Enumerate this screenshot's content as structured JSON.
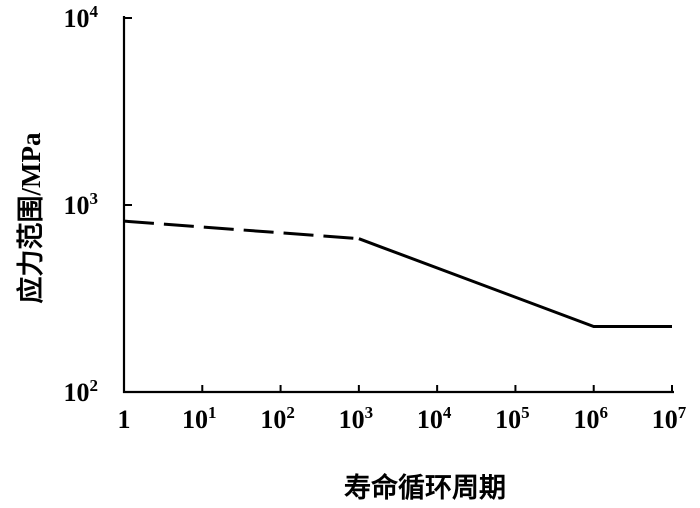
{
  "chart_data": {
    "type": "line",
    "xlabel": "寿命循环周期",
    "ylabel": "应力范围/MPa",
    "x_scale": "log",
    "y_scale": "log",
    "xlim": [
      1,
      10000000
    ],
    "ylim": [
      100,
      10000
    ],
    "grid": false,
    "x_ticks": [
      {
        "value": 1,
        "base": "1",
        "exp": ""
      },
      {
        "value": 10,
        "base": "10",
        "exp": "1"
      },
      {
        "value": 100,
        "base": "10",
        "exp": "2"
      },
      {
        "value": 1000,
        "base": "10",
        "exp": "3"
      },
      {
        "value": 10000,
        "base": "10",
        "exp": "4"
      },
      {
        "value": 100000,
        "base": "10",
        "exp": "5"
      },
      {
        "value": 1000000,
        "base": "10",
        "exp": "6"
      },
      {
        "value": 10000000,
        "base": "10",
        "exp": "7"
      }
    ],
    "y_ticks": [
      {
        "value": 100,
        "base": "10",
        "exp": "2"
      },
      {
        "value": 1000,
        "base": "10",
        "exp": "3"
      },
      {
        "value": 10000,
        "base": "10",
        "exp": "4"
      }
    ],
    "series": [
      {
        "style": "dashed",
        "x": [
          1,
          1000
        ],
        "y": [
          820,
          660
        ]
      },
      {
        "style": "solid",
        "x": [
          1000,
          1000000,
          10000000
        ],
        "y": [
          660,
          224,
          224
        ]
      }
    ]
  }
}
